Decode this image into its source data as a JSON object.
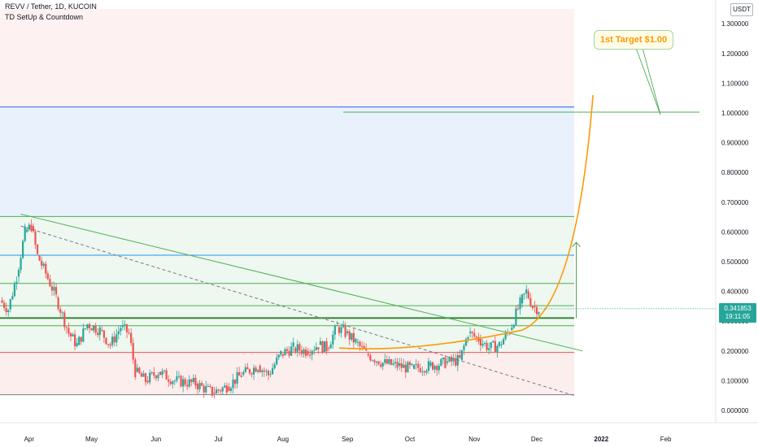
{
  "header": {
    "symbol_line": "REVV / Tether, 1D, KUCOIN",
    "indicator": "TD SetUp & Countdown"
  },
  "price_scale": {
    "currency": "USDT",
    "ticks": [
      "1.300000",
      "1.200000",
      "1.100000",
      "1.000000",
      "0.900000",
      "0.800000",
      "0.700000",
      "0.600000",
      "0.500000",
      "0.400000",
      "0.300000",
      "0.200000",
      "0.100000",
      "0.000000"
    ]
  },
  "time_axis": {
    "ticks": [
      "Apr",
      "May",
      "Jun",
      "Jul",
      "Aug",
      "Sep",
      "Oct",
      "Nov",
      "Dec",
      "2022",
      "Feb"
    ]
  },
  "last_price": {
    "value": "0.341853",
    "countdown": "19:11:05"
  },
  "callout": {
    "text": "1st Target $1.00"
  },
  "colors": {
    "up": "#26a69a",
    "down": "#ef5350",
    "curve": "#ff9800",
    "trendline": "#4caf50",
    "target_line": "#2962ff",
    "arrow": "#43a047"
  },
  "chart_data": {
    "type": "candlestick",
    "y_scale": "linear",
    "ylim": [
      -0.05,
      1.35
    ],
    "x_range": [
      "2021-03-18",
      "2022-02-25"
    ],
    "fib_levels": [
      {
        "value": 0.053,
        "color": "#787b86"
      },
      {
        "value": 0.195,
        "color": "#ef5350"
      },
      {
        "value": 0.285,
        "color": "#4caf50"
      },
      {
        "value": 0.312,
        "color": "#4caf50"
      },
      {
        "value": 0.352,
        "color": "#4caf50"
      },
      {
        "value": 0.427,
        "color": "#4caf50"
      },
      {
        "value": 0.522,
        "color": "#2196f3"
      },
      {
        "value": 0.652,
        "color": "#4caf50"
      },
      {
        "value": 1.02,
        "color": "#2962ff"
      }
    ],
    "target_line": 1.0,
    "support_line": 0.31,
    "price_path": [
      [
        "2021-03-18",
        0.37
      ],
      [
        "2021-03-22",
        0.34
      ],
      [
        "2021-03-26",
        0.45
      ],
      [
        "2021-03-30",
        0.6
      ],
      [
        "2021-04-02",
        0.62
      ],
      [
        "2021-04-05",
        0.52
      ],
      [
        "2021-04-09",
        0.46
      ],
      [
        "2021-04-14",
        0.38
      ],
      [
        "2021-04-20",
        0.26
      ],
      [
        "2021-04-24",
        0.22
      ],
      [
        "2021-04-29",
        0.29
      ],
      [
        "2021-05-05",
        0.27
      ],
      [
        "2021-05-10",
        0.22
      ],
      [
        "2021-05-15",
        0.28
      ],
      [
        "2021-05-19",
        0.26
      ],
      [
        "2021-05-22",
        0.13
      ],
      [
        "2021-05-27",
        0.1
      ],
      [
        "2021-06-02",
        0.13
      ],
      [
        "2021-06-10",
        0.1
      ],
      [
        "2021-06-20",
        0.09
      ],
      [
        "2021-06-28",
        0.06
      ],
      [
        "2021-07-05",
        0.08
      ],
      [
        "2021-07-12",
        0.12
      ],
      [
        "2021-07-20",
        0.15
      ],
      [
        "2021-07-25",
        0.12
      ],
      [
        "2021-07-31",
        0.19
      ],
      [
        "2021-08-06",
        0.21
      ],
      [
        "2021-08-12",
        0.2
      ],
      [
        "2021-08-18",
        0.22
      ],
      [
        "2021-08-22",
        0.21
      ],
      [
        "2021-08-27",
        0.28
      ],
      [
        "2021-08-31",
        0.26
      ],
      [
        "2021-09-05",
        0.23
      ],
      [
        "2021-09-10",
        0.19
      ],
      [
        "2021-09-18",
        0.16
      ],
      [
        "2021-09-25",
        0.15
      ],
      [
        "2021-10-02",
        0.14
      ],
      [
        "2021-10-10",
        0.15
      ],
      [
        "2021-10-18",
        0.16
      ],
      [
        "2021-10-25",
        0.17
      ],
      [
        "2021-10-29",
        0.26
      ],
      [
        "2021-11-03",
        0.24
      ],
      [
        "2021-11-08",
        0.21
      ],
      [
        "2021-11-13",
        0.22
      ],
      [
        "2021-11-18",
        0.27
      ],
      [
        "2021-11-23",
        0.36
      ],
      [
        "2021-11-26",
        0.4
      ],
      [
        "2021-11-29",
        0.35
      ],
      [
        "2021-12-02",
        0.34
      ]
    ],
    "last_close": 0.341853,
    "projection_target": 1.0
  }
}
